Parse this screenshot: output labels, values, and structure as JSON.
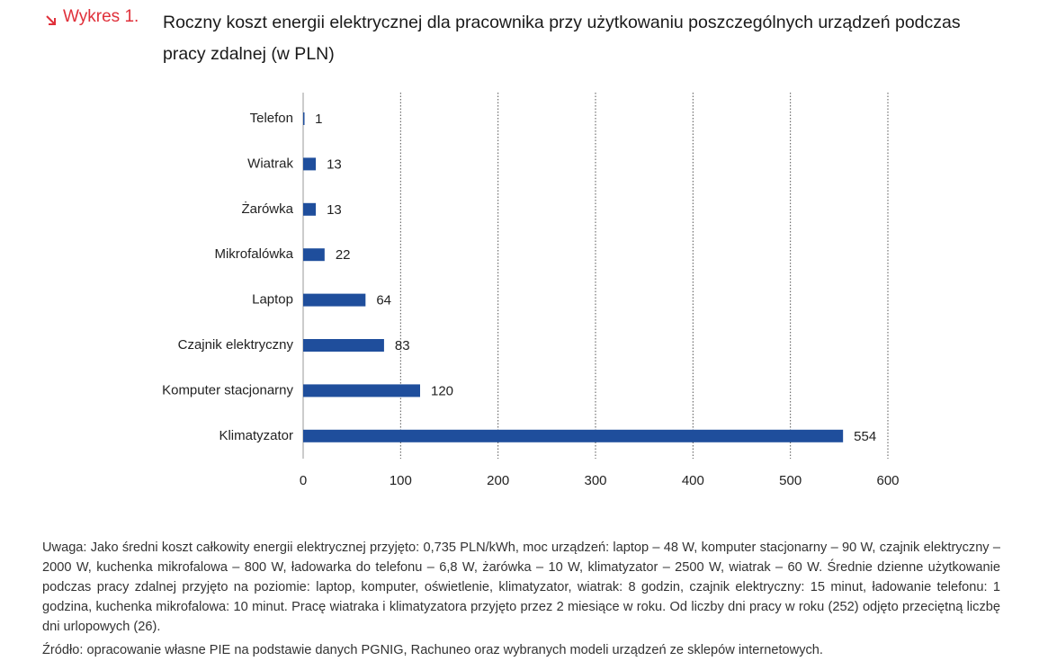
{
  "chart_data": {
    "type": "hbar",
    "label": "Wykres 1.",
    "title": "Roczny koszt energii elektrycznej dla pracownika przy użytkowaniu poszczególnych urządzeń podczas pracy zdalnej (w PLN)",
    "categories": [
      "Telefon",
      "Wiatrak",
      "Żarówka",
      "Mikrofalówka",
      "Laptop",
      "Czajnik elektryczny",
      "Komputer stacjonarny",
      "Klimatyzator"
    ],
    "values": [
      1,
      13,
      13,
      22,
      64,
      83,
      120,
      554
    ],
    "color": "#1f4e9c",
    "xlim": [
      0,
      600
    ],
    "xticks": [
      0,
      100,
      200,
      300,
      400,
      500,
      600
    ],
    "grid": true,
    "note": "Uwaga: Jako średni koszt całkowity energii elektrycznej przyjęto: 0,735 PLN/kWh, moc urządzeń: laptop – 48 W, komputer stacjonarny – 90 W, czajnik elektryczny – 2000 W, kuchenka mikrofalowa – 800 W, ładowarka do telefonu – 6,8 W, żarówka – 10 W, klimatyzator – 2500 W, wiatrak – 60 W. Średnie dzienne użytkowanie podczas pracy zdalnej przyjęto na poziomie: laptop, komputer, oświetlenie, klimatyzator, wiatrak: 8 godzin, czajnik elektryczny: 15 minut, ładowanie telefonu: 1 godzina, kuchenka mikrofalowa: 10 minut. Pracę wiatraka i klimatyzatora przyjęto przez 2 miesiące w roku. Od liczby dni pracy w roku (252) odjęto przeciętną liczbę dni urlopowych (26).",
    "source": "Źródło: opracowanie własne PIE na podstawie danych PGNIG, Rachuneo oraz wybranych modeli urządzeń ze sklepów internetowych."
  }
}
